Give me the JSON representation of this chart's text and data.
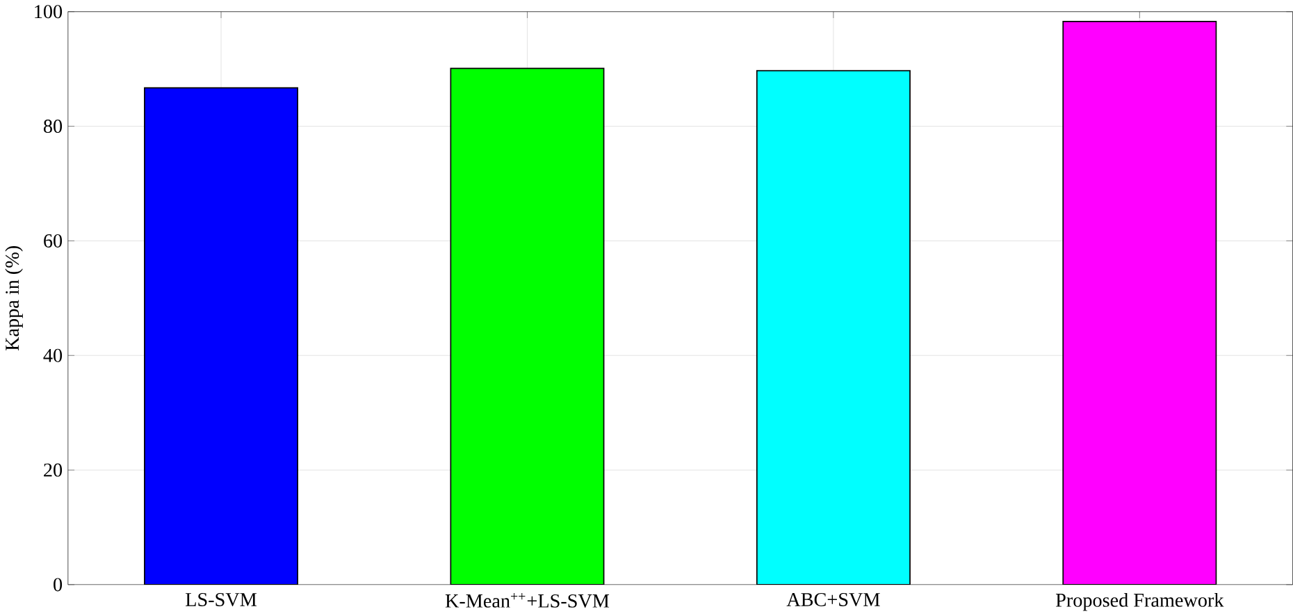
{
  "chart_data": {
    "type": "bar",
    "ylabel": "Kappa in (%)",
    "categories": [
      "LS-SVM",
      "K-Mean$^{++}$+LS-SVM",
      "ABC+SVM",
      "Proposed Framework"
    ],
    "values": [
      86.7,
      90.1,
      89.7,
      98.3
    ],
    "colors": [
      "#0000ff",
      "#00ff00",
      "#00ffff",
      "#ff00ff"
    ],
    "ylim": [
      0,
      100
    ],
    "yticks": [
      0,
      20,
      40,
      60,
      80,
      100
    ],
    "grid": true
  }
}
